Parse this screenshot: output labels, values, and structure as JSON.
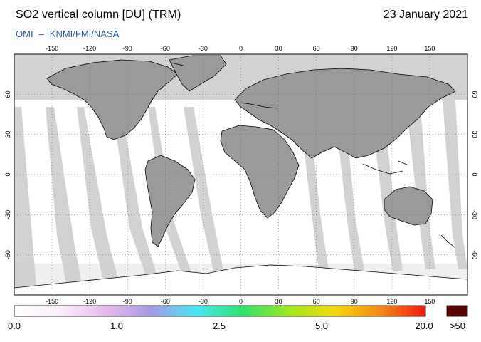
{
  "header": {
    "title": "SO2 vertical column [DU] (TRM)",
    "date": "23 January 2021",
    "source_left": "OMI",
    "source_sep": "–",
    "source_right": "KNMI/FMI/NASA",
    "source_color": "#2b5a9e"
  },
  "map": {
    "projection": "equirectangular",
    "lon_range": [
      -180,
      180
    ],
    "lat_range": [
      -90,
      90
    ],
    "lon_ticks": [
      "-150",
      "-120",
      "-90",
      "-60",
      "-30",
      "0",
      "30",
      "60",
      "90",
      "120",
      "150"
    ],
    "lat_ticks_left": [
      "60",
      "30",
      "0",
      "-30",
      "-60"
    ],
    "lat_ticks_right": [
      "60",
      "30",
      "0",
      "-30",
      "-60"
    ],
    "gridlines": "dotted",
    "colors": {
      "no_data": "#d2d2d2",
      "land_no_data": "#9a9a9a",
      "low_value": "#ffffff",
      "coast": "#000000"
    }
  },
  "colorbar": {
    "labels": [
      "0.0",
      "1.0",
      "2.5",
      "5.0",
      "20.0",
      ">50"
    ],
    "gradient_stops": [
      "#ffffff",
      "#fbeefb",
      "#e9b8ee",
      "#a69ae4",
      "#45e8f4",
      "#2ee36a",
      "#9be81f",
      "#f5d80a",
      "#f68a13",
      "#ef1a0c"
    ],
    "overflow_color": "#5a0505"
  }
}
